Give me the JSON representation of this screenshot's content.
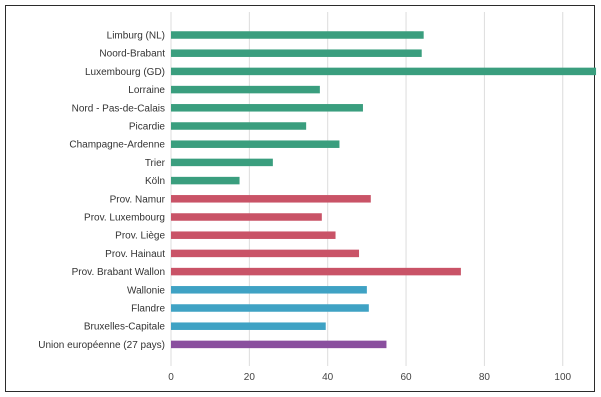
{
  "chart_data": {
    "type": "bar",
    "orientation": "horizontal",
    "title": "",
    "xlabel": "",
    "ylabel": "",
    "xlim": [
      0,
      109
    ],
    "grid": true,
    "legend": "none",
    "x_ticks": [
      0,
      20,
      40,
      60,
      80,
      100
    ],
    "categories": [
      "Limburg (NL)",
      "Noord-Brabant",
      "Luxembourg (GD)",
      "Lorraine",
      "Nord - Pas-de-Calais",
      "Picardie",
      "Champagne-Ardenne",
      "Trier",
      "Köln",
      "Prov. Namur",
      "Prov. Luxembourg",
      "Prov. Liège",
      "Prov. Hainaut",
      "Prov. Brabant Wallon",
      "Wallonie",
      "Flandre",
      "Bruxelles-Capitale",
      "Union européenne (27 pays)"
    ],
    "values": [
      64.5,
      64,
      108.5,
      38,
      49,
      34.5,
      43,
      26,
      17.5,
      51,
      38.5,
      42,
      48,
      74,
      50,
      50.5,
      39.5,
      55
    ],
    "colors": [
      "#3a9e7e",
      "#3a9e7e",
      "#3a9e7e",
      "#3a9e7e",
      "#3a9e7e",
      "#3a9e7e",
      "#3a9e7e",
      "#3a9e7e",
      "#3a9e7e",
      "#c95367",
      "#c95367",
      "#c95367",
      "#c95367",
      "#c95367",
      "#3fa2c4",
      "#3fa2c4",
      "#3fa2c4",
      "#8a4f9e"
    ]
  }
}
